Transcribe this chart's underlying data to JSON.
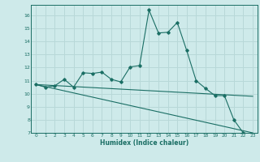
{
  "xlabel": "Humidex (Indice chaleur)",
  "bg_color": "#ceeaea",
  "line_color": "#1a6e64",
  "grid_color": "#b8d8d8",
  "xlim": [
    -0.5,
    23.5
  ],
  "ylim": [
    7,
    16.8
  ],
  "yticks": [
    7,
    8,
    9,
    10,
    11,
    12,
    13,
    14,
    15,
    16
  ],
  "xticks": [
    0,
    1,
    2,
    3,
    4,
    5,
    6,
    7,
    8,
    9,
    10,
    11,
    12,
    13,
    14,
    15,
    16,
    17,
    18,
    19,
    20,
    21,
    22,
    23
  ],
  "line1_x": [
    0,
    1,
    2,
    3,
    4,
    5,
    6,
    7,
    8,
    9,
    10,
    11,
    12,
    13,
    14,
    15,
    16,
    17,
    18,
    19,
    20,
    21,
    22,
    23
  ],
  "line1_y": [
    10.7,
    10.5,
    10.6,
    11.1,
    10.5,
    11.6,
    11.55,
    11.65,
    11.1,
    10.9,
    12.05,
    12.15,
    16.4,
    14.65,
    14.7,
    15.45,
    13.3,
    11.0,
    10.4,
    9.85,
    9.85,
    8.0,
    7.0,
    6.9
  ],
  "line2_x": [
    0,
    23
  ],
  "line2_y": [
    10.7,
    9.8
  ],
  "line3_x": [
    0,
    23
  ],
  "line3_y": [
    10.7,
    7.0
  ]
}
